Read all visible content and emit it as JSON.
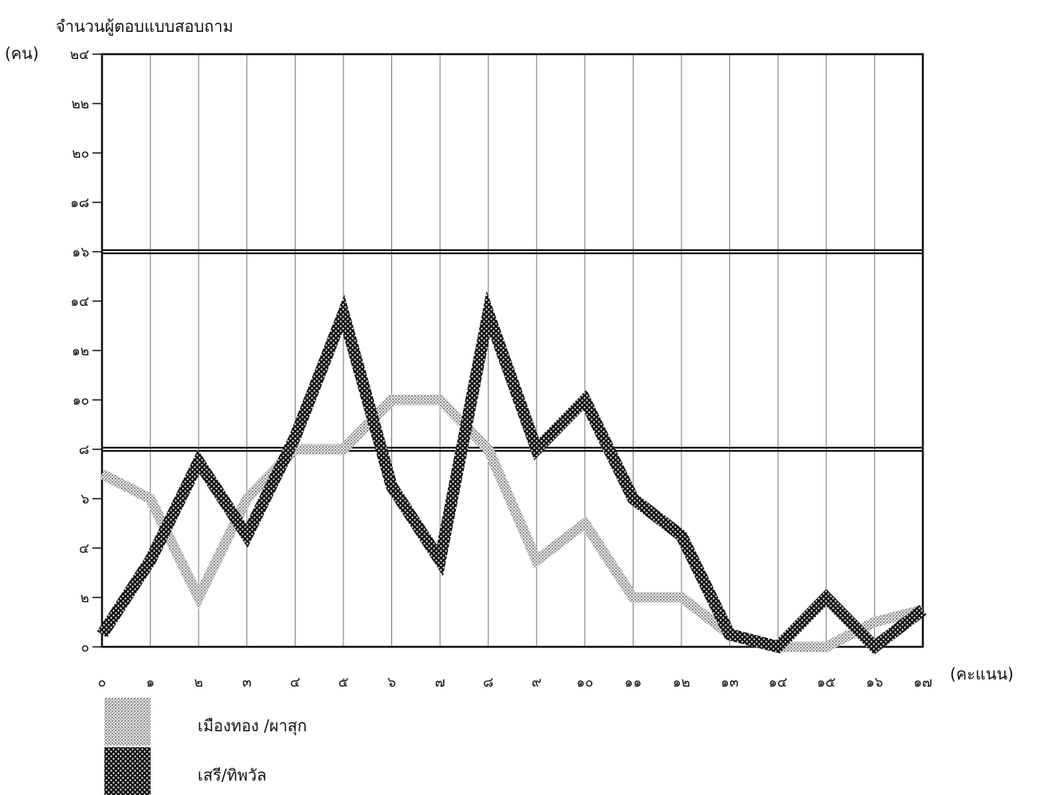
{
  "chart_data": {
    "type": "line",
    "ylabel": "จำนวนผู้ตอบแบบสอบถาม",
    "yunit": "(คน)",
    "xunit": "(คะแนน)",
    "x": [
      0,
      1,
      2,
      3,
      4,
      5,
      6,
      7,
      8,
      9,
      10,
      11,
      12,
      13,
      14,
      15,
      16,
      17
    ],
    "xticks": [
      "๐",
      "๑",
      "๒",
      "๓",
      "๔",
      "๕",
      "๖",
      "๗",
      "๘",
      "๙",
      "๑๐",
      "๑๑",
      "๑๒",
      "๑๓",
      "๑๔",
      "๑๕",
      "๑๖",
      "๑๗"
    ],
    "yticks": [
      {
        "value": 0,
        "label": "๐"
      },
      {
        "value": 2,
        "label": "๒"
      },
      {
        "value": 4,
        "label": "๔"
      },
      {
        "value": 6,
        "label": "๖"
      },
      {
        "value": 8,
        "label": "๘"
      },
      {
        "value": 10,
        "label": "๑๐"
      },
      {
        "value": 12,
        "label": "๑๒"
      },
      {
        "value": 14,
        "label": "๑๔"
      },
      {
        "value": 16,
        "label": "๑๖"
      },
      {
        "value": 18,
        "label": "๑๘"
      },
      {
        "value": 20,
        "label": "๒๐"
      },
      {
        "value": 22,
        "label": "๒๒"
      },
      {
        "value": 24,
        "label": "๒๔"
      }
    ],
    "ylim": [
      0,
      24
    ],
    "grid": "vertical",
    "legend_position": "bottom-left",
    "series": [
      {
        "name": "เมืองทอง /ผาสุก",
        "color": "#b9b9b9",
        "pattern": "light-dotted",
        "values": [
          7,
          6,
          2,
          6,
          8,
          8,
          10,
          10,
          8,
          3.5,
          5,
          2,
          2,
          0.5,
          0,
          0,
          1,
          1.5
        ]
      },
      {
        "name": "เสรี/ทิพวัล",
        "color": "#1a1a1a",
        "pattern": "dark-dotted",
        "values": [
          0.5,
          3.5,
          7.5,
          4.5,
          8.5,
          13.5,
          6.5,
          3.5,
          13.5,
          8,
          10,
          6,
          4.5,
          0.5,
          0,
          2,
          0,
          1.5
        ]
      }
    ]
  }
}
